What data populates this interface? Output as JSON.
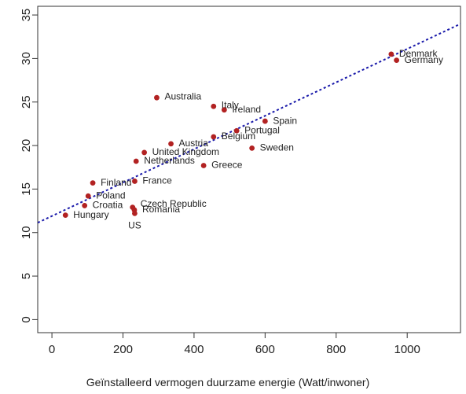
{
  "chart_data": {
    "type": "scatter",
    "title": "",
    "xlabel": "Geïnstalleerd vermogen duurzame energie (Watt/inwoner)",
    "ylabel": "",
    "xlim": [
      -40,
      1150
    ],
    "ylim": [
      -1.5,
      36
    ],
    "xticks": [
      0,
      200,
      400,
      600,
      800,
      1000
    ],
    "yticks": [
      0,
      5,
      10,
      15,
      20,
      25,
      30,
      35
    ],
    "grid": false,
    "legend": "none",
    "point_color": "#b22222",
    "trend_color": "#1a1aaa",
    "trendline": {
      "style": "dotted",
      "intercept": 11.9,
      "slope": 0.0192
    },
    "points": [
      {
        "label": "Denmark",
        "x": 955,
        "y": 30.5
      },
      {
        "label": "Germany",
        "x": 970,
        "y": 29.8
      },
      {
        "label": "Australia",
        "x": 295,
        "y": 25.5
      },
      {
        "label": "Italy",
        "x": 455,
        "y": 24.5
      },
      {
        "label": "Ireland",
        "x": 485,
        "y": 24.1
      },
      {
        "label": "Spain",
        "x": 600,
        "y": 22.8
      },
      {
        "label": "Portugal",
        "x": 520,
        "y": 21.7
      },
      {
        "label": "Belgium",
        "x": 455,
        "y": 21.0
      },
      {
        "label": "Austria",
        "x": 335,
        "y": 20.2
      },
      {
        "label": "Sweden",
        "x": 563,
        "y": 19.7
      },
      {
        "label": "United Kingdom",
        "x": 260,
        "y": 19.2
      },
      {
        "label": "Netherlands",
        "x": 237,
        "y": 18.2
      },
      {
        "label": "Greece",
        "x": 427,
        "y": 17.7
      },
      {
        "label": "Finland",
        "x": 115,
        "y": 15.7
      },
      {
        "label": "France",
        "x": 233,
        "y": 15.9
      },
      {
        "label": "Poland",
        "x": 102,
        "y": 14.2
      },
      {
        "label": "Croatia",
        "x": 92,
        "y": 13.1
      },
      {
        "label": "Czech Republic",
        "x": 227,
        "y": 12.9
      },
      {
        "label": "Romania",
        "x": 232,
        "y": 12.6
      },
      {
        "label": "US",
        "x": 233,
        "y": 12.2
      },
      {
        "label": "Hungary",
        "x": 38,
        "y": 12.0
      }
    ]
  }
}
